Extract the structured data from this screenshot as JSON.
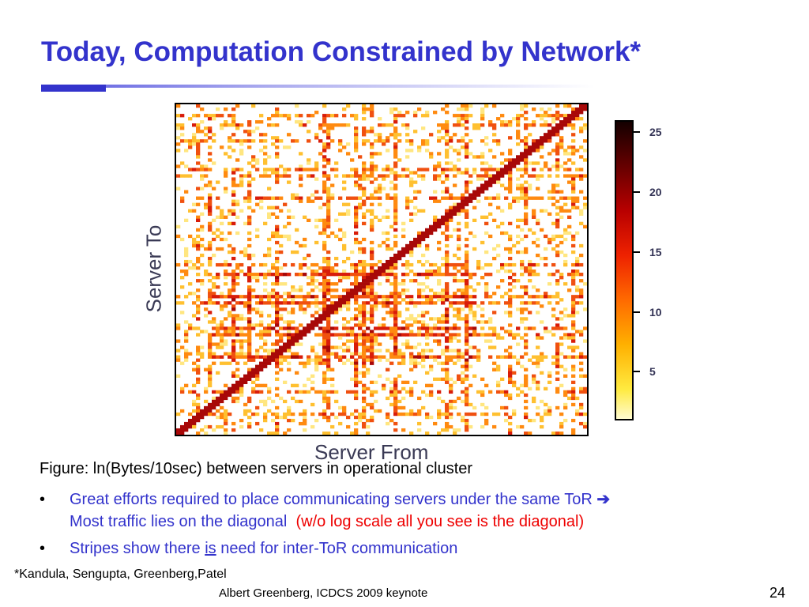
{
  "slide": {
    "title": "Today, Computation Constrained by Network*",
    "figure": {
      "y_axis_label": "Server To",
      "x_axis_label": "Server From",
      "colorbar_ticks": [
        "25",
        "20",
        "15",
        "10",
        "5"
      ],
      "colorbar_colors": [
        "#fffbd0",
        "#ffea40",
        "#ffb000",
        "#ff6a00",
        "#ee2200",
        "#b80000",
        "#660000",
        "#140000"
      ]
    },
    "caption": "Figure: ln(Bytes/10sec) between servers in operational cluster",
    "bullets": [
      {
        "marker": "•",
        "text_a": "Great efforts required to place communicating servers under the same ToR ",
        "arrow": "➔",
        "text_b": "Most traffic lies on the diagonal",
        "text_red": "(w/o log scale all you see is the diagonal)"
      },
      {
        "marker": "•",
        "text_before": "Stripes show there ",
        "text_underlined": "is",
        "text_after": " need for inter-ToR communication"
      }
    ],
    "footnote": "*Kandula, Sengupta, Greenberg,Patel",
    "footer": "Albert Greenberg, ICDCS 2009 keynote",
    "page_number": "24"
  }
}
